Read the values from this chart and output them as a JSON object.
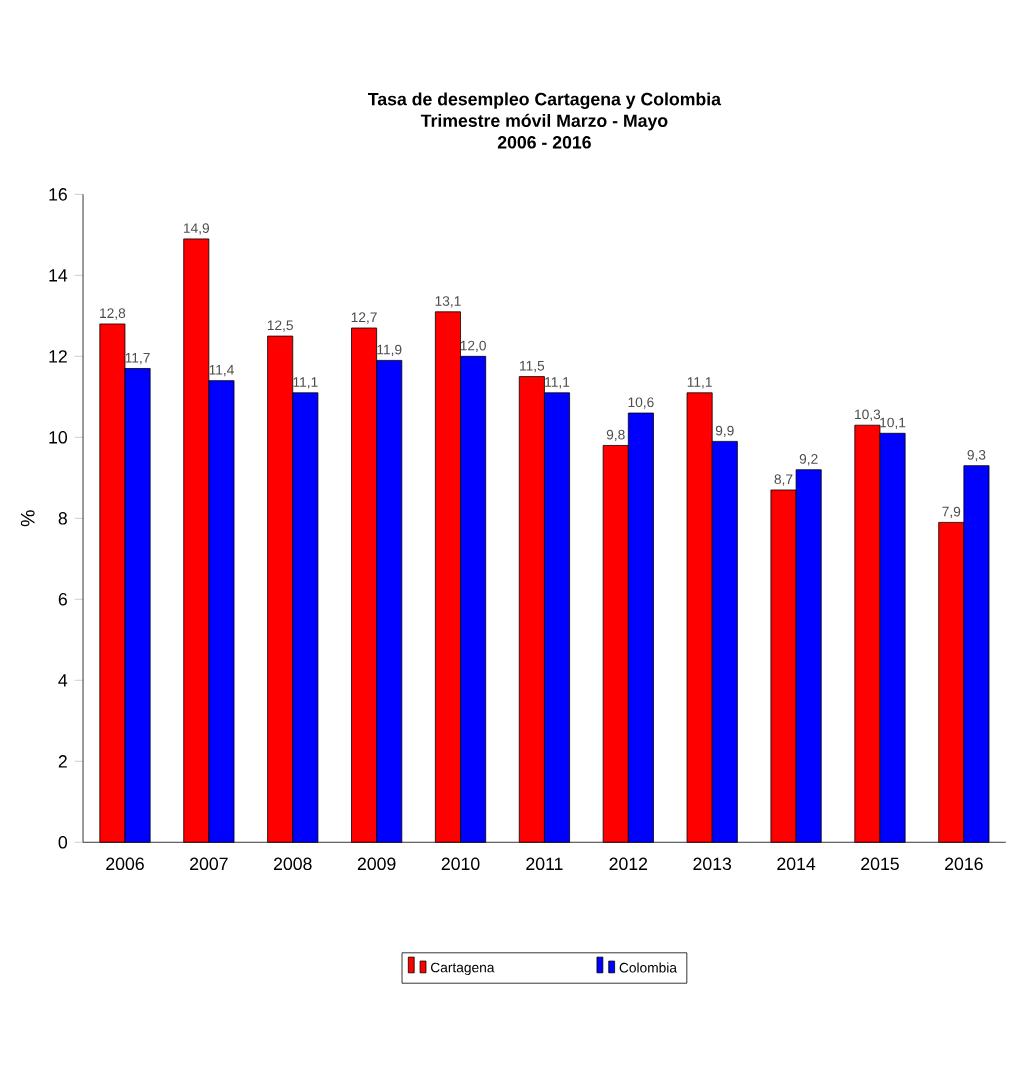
{
  "chart_data": {
    "type": "bar",
    "title": "Tasa de desempleo Cartagena y Colombia\nTrimestre móvil Marzo - Mayo\n2006 - 2016",
    "ylabel": "%",
    "categories": [
      "2006",
      "2007",
      "2008",
      "2009",
      "2010",
      "2011",
      "2012",
      "2013",
      "2014",
      "2015",
      "2016"
    ],
    "series": [
      {
        "name": "Cartagena",
        "color": "#ff0000",
        "values": [
          12.8,
          14.9,
          12.5,
          12.7,
          13.1,
          11.5,
          9.8,
          11.1,
          8.7,
          10.3,
          7.9
        ],
        "value_labels": [
          "12,8",
          "14,9",
          "12,5",
          "12,7",
          "13,1",
          "11,5",
          "9,8",
          "11,1",
          "8,7",
          "10,3",
          "7,9"
        ]
      },
      {
        "name": "Colombia",
        "color": "#0000ff",
        "values": [
          11.7,
          11.4,
          11.1,
          11.9,
          12.0,
          11.1,
          10.6,
          9.9,
          9.2,
          10.1,
          9.3
        ],
        "value_labels": [
          "11,7",
          "11,4",
          "11,1",
          "11,9",
          "12,0",
          "11,1",
          "10,6",
          "9,9",
          "9,2",
          "10,1",
          "9,3"
        ]
      }
    ],
    "ylim": [
      0,
      16
    ],
    "yticks": [
      0,
      2,
      4,
      6,
      8,
      10,
      12,
      14,
      16
    ],
    "grid": false,
    "legend": "bottom"
  }
}
